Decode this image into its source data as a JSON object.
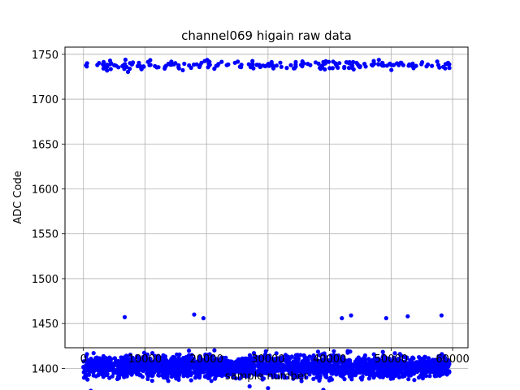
{
  "chart_data": {
    "type": "scatter",
    "title": "channel069 higain raw data",
    "xlabel": "sample number",
    "ylabel": "ADC Code",
    "xlim": [
      -3000,
      62500
    ],
    "ylim": [
      1423,
      1758
    ],
    "grid": true,
    "x_ticks": [
      0,
      10000,
      20000,
      30000,
      40000,
      50000,
      60000
    ],
    "y_ticks": [
      1400,
      1450,
      1500,
      1550,
      1600,
      1650,
      1700,
      1750
    ],
    "series": [
      {
        "color": "#0000ff",
        "marker": "circle",
        "x_range": [
          0,
          59500
        ],
        "bands": [
          {
            "level": 1738,
            "min": 1729,
            "max": 1746,
            "density": "sparse"
          },
          {
            "level": 1402,
            "min": 1384,
            "max": 1422,
            "density": "dense"
          }
        ],
        "outliers": [
          {
            "x": 6700,
            "y": 1457
          },
          {
            "x": 18000,
            "y": 1460
          },
          {
            "x": 19500,
            "y": 1456
          },
          {
            "x": 42000,
            "y": 1456
          },
          {
            "x": 43500,
            "y": 1459
          },
          {
            "x": 49200,
            "y": 1456
          },
          {
            "x": 52700,
            "y": 1458
          },
          {
            "x": 58200,
            "y": 1459
          },
          {
            "x": 1200,
            "y": 1375
          },
          {
            "x": 27000,
            "y": 1380
          },
          {
            "x": 30000,
            "y": 1378
          },
          {
            "x": 39000,
            "y": 1376
          }
        ]
      }
    ]
  }
}
